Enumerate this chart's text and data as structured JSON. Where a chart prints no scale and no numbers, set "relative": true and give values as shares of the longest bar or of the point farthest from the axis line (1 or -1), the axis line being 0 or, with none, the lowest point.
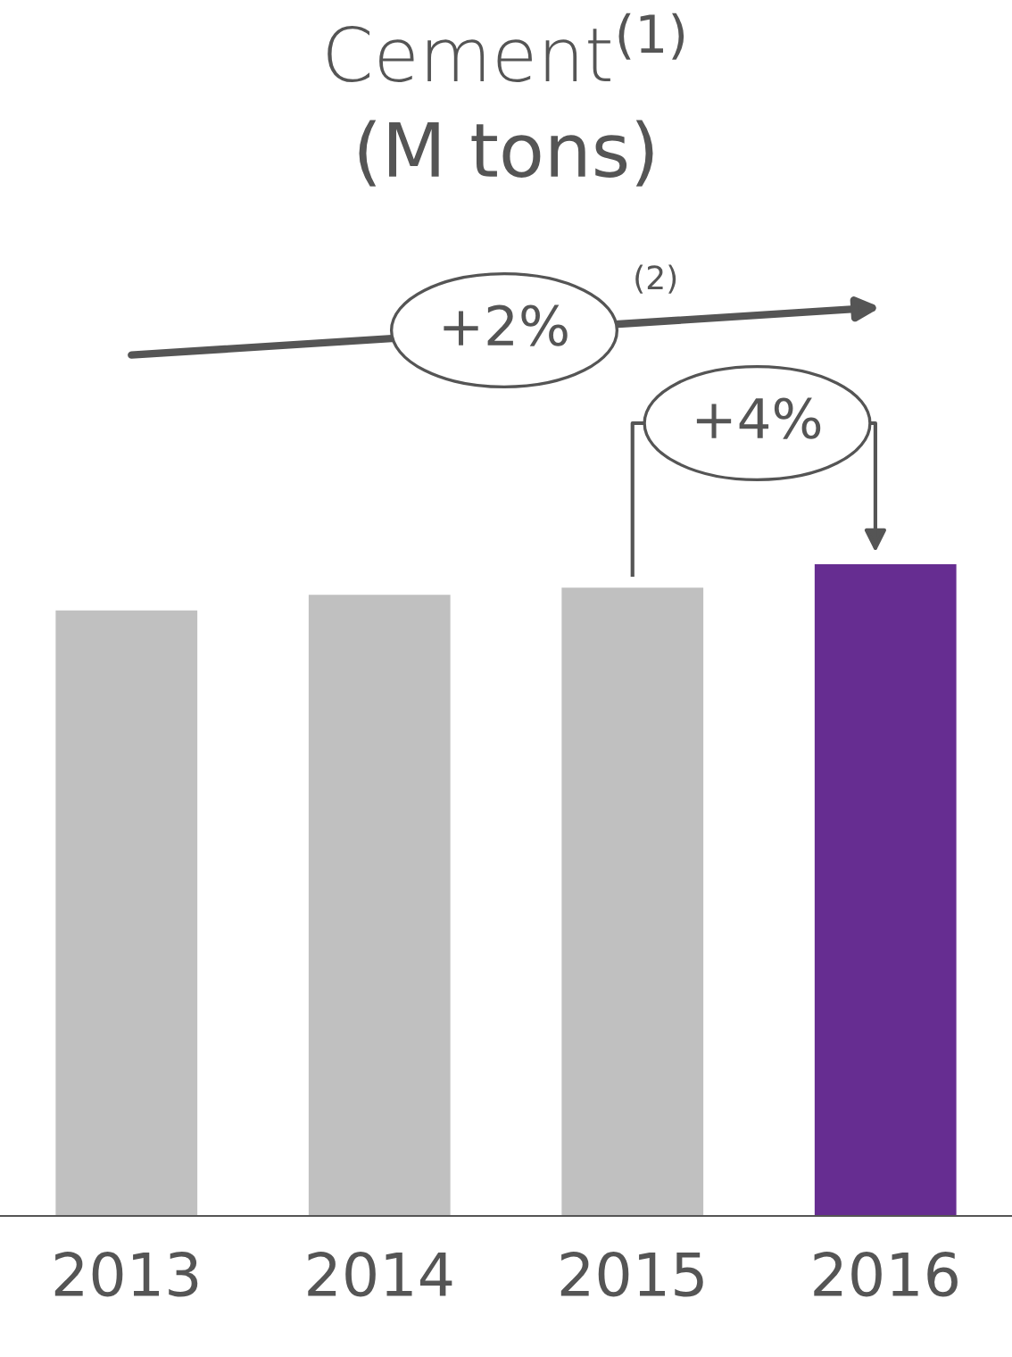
{
  "chart_data": {
    "type": "bar",
    "title": "Cement$^{(1)}$",
    "subtitle": "(M tons)",
    "categories": [
      "2013",
      "2014",
      "2015",
      "2016"
    ],
    "values": [
      0.929,
      0.953,
      0.964,
      1
    ],
    "colors": [
      "#c0c0c0",
      "#c0c0c0",
      "#c0c0c0",
      "#662d91"
    ],
    "relative": true,
    "annotations": [
      "+2%",
      "(2)",
      "+4%"
    ]
  }
}
